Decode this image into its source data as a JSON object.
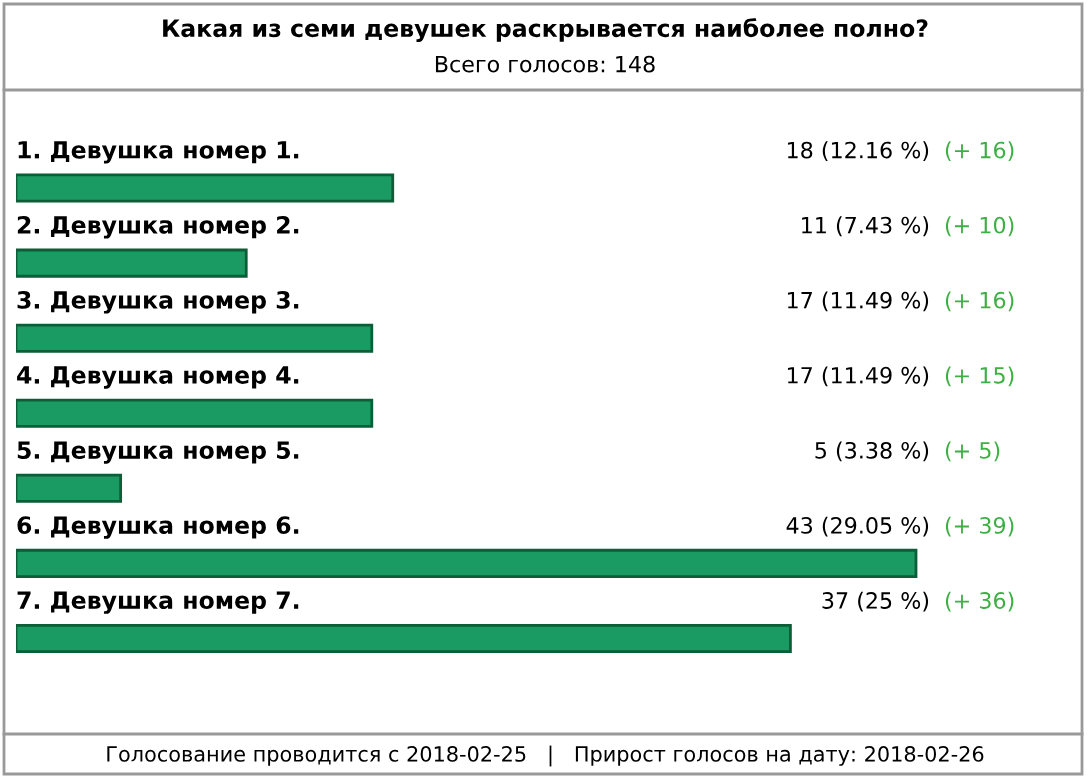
{
  "chart_data": {
    "type": "bar",
    "orientation": "horizontal",
    "title": "Какая из семи девушек раскрывается наиболее полно?",
    "subtitle": "Всего голосов: 148",
    "categories": [
      "1. Девушка номер 1.",
      "2. Девушка номер 2.",
      "3. Девушка номер 3.",
      "4. Девушка номер 4.",
      "5. Девушка номер 5.",
      "6. Девушка номер 6.",
      "7. Девушка номер 7."
    ],
    "values": [
      18,
      11,
      17,
      17,
      5,
      43,
      37
    ],
    "value_labels": [
      "18 (12.16 %)",
      "11 (7.43 %)",
      "17 (11.49 %)",
      "17 (11.49 %)",
      "5 (3.38 %)",
      "43 (29.05 %)",
      "37 (25 %)"
    ],
    "color": "#1a9b63",
    "annotations": [
      "(+ 16)",
      "(+ 10)",
      "(+ 16)",
      "(+ 15)",
      "(+ 5)",
      "(+ 39)",
      "(+ 36)",
      "Голосование проводится с 2018-02-25   |   Прирост голосов на дату: 2018-02-26"
    ]
  }
}
